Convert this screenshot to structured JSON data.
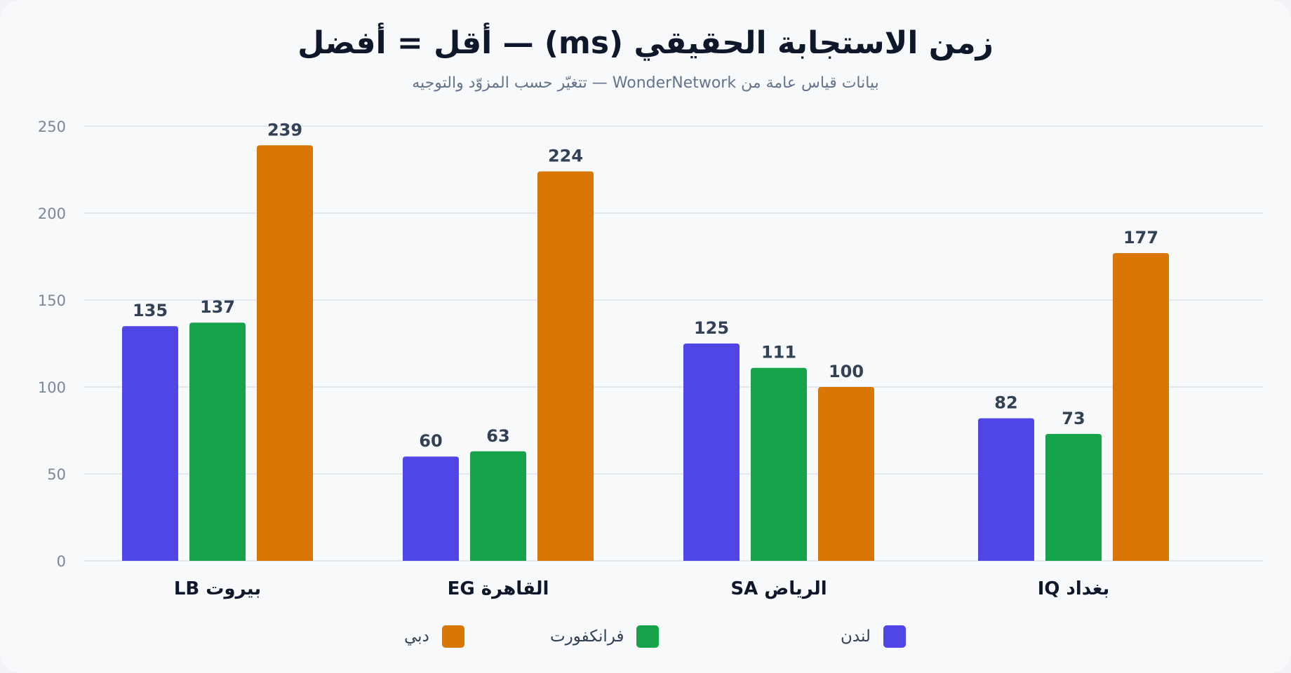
{
  "header": {
    "title": "زمن الاستجابة الحقيقي (ms) — أقل = أفضل",
    "subtitle": "بيانات قياس عامة من WonderNetwork — تتغيّر حسب المزوّد والتوجيه"
  },
  "colors": {
    "london": "#4f46e5",
    "frankfurt": "#16a34a",
    "dubai": "#d97706",
    "grid": "#e2e8f0",
    "background": "#f7f9fb"
  },
  "chart_data": {
    "type": "bar",
    "title": "زمن الاستجابة الحقيقي (ms) — أقل = أفضل",
    "subtitle": "بيانات قياس عامة من WonderNetwork — تتغيّر حسب المزوّد والتوجيه",
    "categories": [
      "LB بيروت",
      "EG القاهرة",
      "SA الرياض",
      "IQ بغداد"
    ],
    "series": [
      {
        "name": "لندن",
        "color": "#4f46e5",
        "values": [
          135,
          60,
          125,
          82
        ]
      },
      {
        "name": "فرانكفورت",
        "color": "#16a34a",
        "values": [
          137,
          63,
          111,
          73
        ]
      },
      {
        "name": "دبي",
        "color": "#d97706",
        "values": [
          239,
          224,
          100,
          177
        ]
      }
    ],
    "ylim": [
      0,
      250
    ],
    "yticks": [
      0,
      50,
      100,
      150,
      200,
      250
    ],
    "grid": true,
    "legend_position": "bottom",
    "data_labels": true
  }
}
